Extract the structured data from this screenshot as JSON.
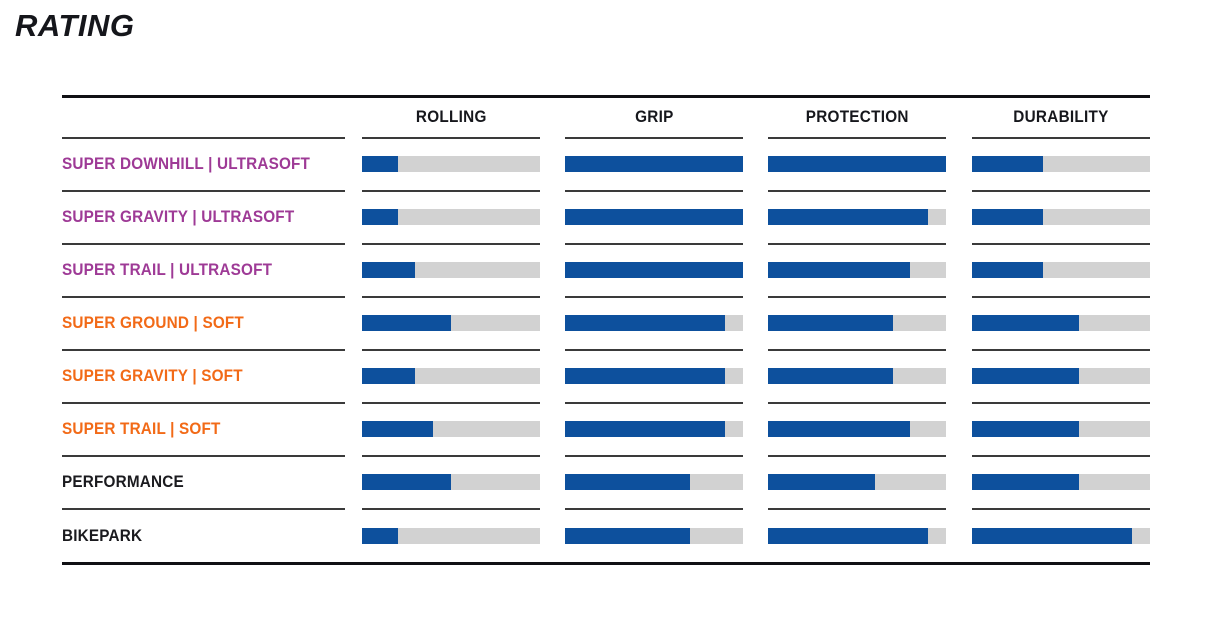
{
  "chart_data": {
    "type": "bar",
    "title": "RATING",
    "columns": [
      "ROLLING",
      "GRIP",
      "PROTECTION",
      "DURABILITY"
    ],
    "value_range": [
      0,
      1
    ],
    "value_unit": "fraction of full bar",
    "legend_position": "none",
    "grid": false,
    "rows": [
      {
        "label": "SUPER DOWNHILL | ULTRASOFT",
        "label_color": "#9e3a96",
        "values": [
          0.2,
          1.0,
          1.0,
          0.4
        ]
      },
      {
        "label": "SUPER GRAVITY | ULTRASOFT",
        "label_color": "#9e3a96",
        "values": [
          0.2,
          1.0,
          0.9,
          0.4
        ]
      },
      {
        "label": "SUPER TRAIL | ULTRASOFT",
        "label_color": "#9e3a96",
        "values": [
          0.3,
          1.0,
          0.8,
          0.4
        ]
      },
      {
        "label": "SUPER GROUND | SOFT",
        "label_color": "#f26a17",
        "values": [
          0.5,
          0.9,
          0.7,
          0.6
        ]
      },
      {
        "label": "SUPER GRAVITY | SOFT",
        "label_color": "#f26a17",
        "values": [
          0.3,
          0.9,
          0.7,
          0.6
        ]
      },
      {
        "label": "SUPER TRAIL | SOFT",
        "label_color": "#f26a17",
        "values": [
          0.4,
          0.9,
          0.8,
          0.6
        ]
      },
      {
        "label": "PERFORMANCE",
        "label_color": "#1a1a1e",
        "values": [
          0.5,
          0.7,
          0.6,
          0.6
        ]
      },
      {
        "label": "BIKEPARK",
        "label_color": "#1a1a1e",
        "values": [
          0.2,
          0.7,
          0.9,
          0.9
        ]
      }
    ],
    "bar_fill_color": "#0d509d",
    "bar_track_color": "#d2d2d2",
    "header_text_color": "#16171c",
    "separator_color": "#3a3a3a",
    "frame_line_color": "#101014",
    "title_color": "#15161b"
  }
}
